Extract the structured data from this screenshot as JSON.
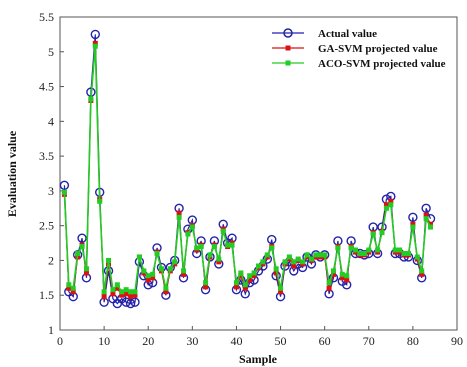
{
  "chart_data": {
    "type": "line",
    "title": "",
    "xlabel": "Sample",
    "ylabel": "Evaluation value",
    "xlim": [
      0,
      90
    ],
    "ylim": [
      1,
      5.5
    ],
    "xticks": [
      0,
      10,
      20,
      30,
      40,
      50,
      60,
      70,
      80,
      90
    ],
    "yticks": [
      1,
      1.5,
      2,
      2.5,
      3,
      3.5,
      4,
      4.5,
      5,
      5.5
    ],
    "grid": false,
    "legend_position": "top-right",
    "x": [
      1,
      2,
      3,
      4,
      5,
      6,
      7,
      8,
      9,
      10,
      11,
      12,
      13,
      14,
      15,
      16,
      17,
      18,
      19,
      20,
      21,
      22,
      23,
      24,
      25,
      26,
      27,
      28,
      29,
      30,
      31,
      32,
      33,
      34,
      35,
      36,
      37,
      38,
      39,
      40,
      41,
      42,
      43,
      44,
      45,
      46,
      47,
      48,
      49,
      50,
      51,
      52,
      53,
      54,
      55,
      56,
      57,
      58,
      59,
      60,
      61,
      62,
      63,
      64,
      65,
      66,
      67,
      68,
      69,
      70,
      71,
      72,
      73,
      74,
      75,
      76,
      77,
      78,
      79,
      80,
      81,
      82,
      83,
      84
    ],
    "series": [
      {
        "name": "Actual value",
        "color": "#2222aa",
        "marker": "circle",
        "values": [
          3.08,
          1.55,
          1.48,
          2.08,
          2.32,
          1.75,
          4.42,
          5.25,
          2.98,
          1.4,
          1.85,
          1.45,
          1.38,
          1.45,
          1.4,
          1.38,
          1.4,
          1.98,
          1.78,
          1.65,
          1.68,
          2.18,
          1.9,
          1.5,
          1.9,
          2.0,
          2.75,
          1.75,
          2.45,
          2.58,
          2.1,
          2.28,
          1.58,
          2.05,
          2.28,
          1.95,
          2.52,
          2.25,
          2.32,
          1.58,
          1.72,
          1.52,
          1.68,
          1.72,
          1.85,
          1.92,
          2.02,
          2.3,
          1.78,
          1.48,
          1.92,
          1.98,
          1.85,
          1.95,
          1.9,
          2.05,
          1.95,
          2.08,
          2.05,
          2.08,
          1.52,
          1.75,
          2.28,
          1.7,
          1.65,
          2.28,
          2.1,
          2.1,
          2.08,
          2.1,
          2.48,
          2.1,
          2.48,
          2.88,
          2.92,
          2.1,
          2.1,
          2.05,
          2.05,
          2.62,
          2.0,
          1.75,
          2.75,
          2.6
        ]
      },
      {
        "name": "GA-SVM projected value",
        "color": "#dd1111",
        "marker": "square",
        "values": [
          2.95,
          1.6,
          1.55,
          2.05,
          2.22,
          1.82,
          4.3,
          5.12,
          2.88,
          1.48,
          1.95,
          1.52,
          1.6,
          1.5,
          1.52,
          1.48,
          1.5,
          2.05,
          1.82,
          1.72,
          1.75,
          2.12,
          1.85,
          1.55,
          1.85,
          1.95,
          2.68,
          1.8,
          2.4,
          2.5,
          2.15,
          2.22,
          1.62,
          2.05,
          2.22,
          1.98,
          2.45,
          2.2,
          2.25,
          1.62,
          1.78,
          1.6,
          1.72,
          1.78,
          1.9,
          1.95,
          2.05,
          2.2,
          1.82,
          1.55,
          1.95,
          2.02,
          1.92,
          2.0,
          1.95,
          2.05,
          2.0,
          2.05,
          2.05,
          2.05,
          1.6,
          1.8,
          2.2,
          1.75,
          1.72,
          2.2,
          2.12,
          2.08,
          2.08,
          2.12,
          2.4,
          2.12,
          2.42,
          2.8,
          2.85,
          2.12,
          2.12,
          2.08,
          2.08,
          2.52,
          2.02,
          1.8,
          2.65,
          2.52
        ]
      },
      {
        "name": "ACO-SVM projected value",
        "color": "#22cc22",
        "marker": "square",
        "values": [
          2.98,
          1.65,
          1.6,
          2.1,
          2.2,
          1.88,
          4.32,
          5.08,
          2.85,
          1.55,
          2.0,
          1.58,
          1.65,
          1.55,
          1.58,
          1.55,
          1.55,
          2.05,
          1.85,
          1.78,
          1.8,
          2.1,
          1.88,
          1.6,
          1.88,
          1.98,
          2.62,
          1.85,
          2.38,
          2.48,
          2.18,
          2.2,
          1.68,
          2.08,
          2.2,
          2.02,
          2.42,
          2.22,
          2.22,
          1.68,
          1.82,
          1.65,
          1.78,
          1.82,
          1.92,
          1.98,
          2.08,
          2.18,
          1.88,
          1.6,
          1.98,
          2.05,
          1.98,
          2.02,
          1.98,
          2.08,
          2.02,
          2.08,
          2.08,
          2.08,
          1.68,
          1.85,
          2.18,
          1.8,
          1.78,
          2.18,
          2.15,
          2.1,
          2.1,
          2.15,
          2.38,
          2.15,
          2.4,
          2.75,
          2.8,
          2.15,
          2.15,
          2.1,
          2.1,
          2.48,
          2.05,
          1.85,
          2.6,
          2.48
        ]
      }
    ]
  }
}
